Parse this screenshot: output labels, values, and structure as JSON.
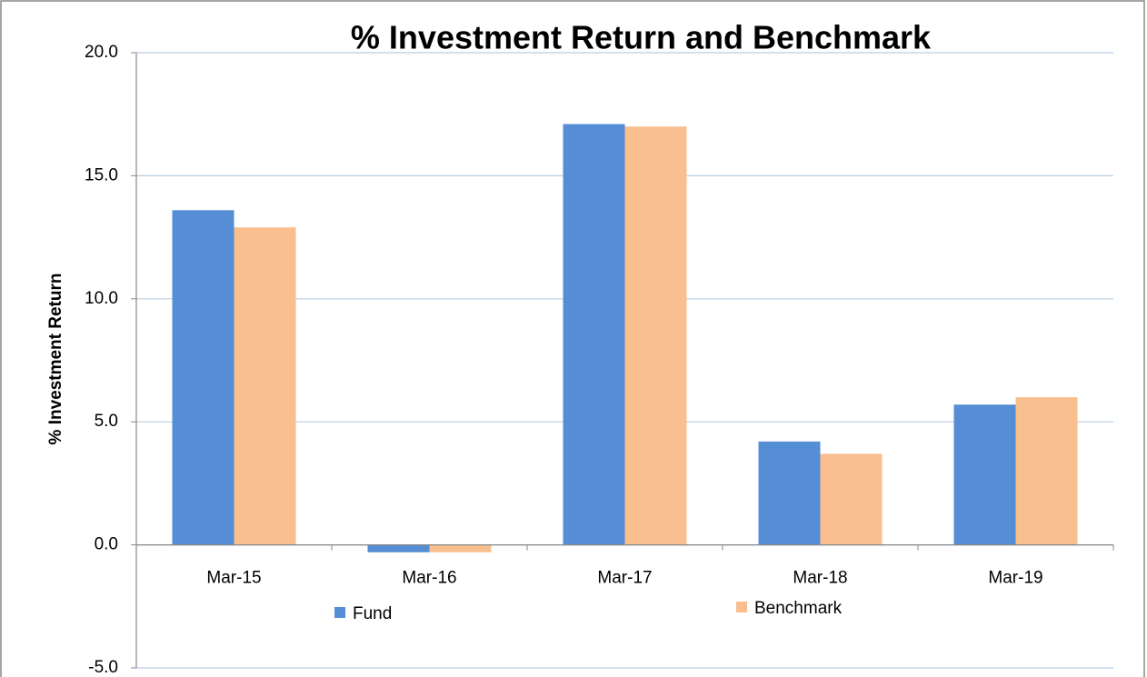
{
  "chart_data": {
    "type": "bar",
    "title": "% Investment Return and Benchmark",
    "y_label": "% Investment Return",
    "categories": [
      "Mar-15",
      "Mar-16",
      "Mar-17",
      "Mar-18",
      "Mar-19"
    ],
    "series": [
      {
        "name": "Fund",
        "color": "#558ed5",
        "values": [
          13.6,
          -0.3,
          17.1,
          4.2,
          5.7
        ]
      },
      {
        "name": "Benchmark",
        "color": "#f9bf8f",
        "values": [
          12.9,
          -0.3,
          17.0,
          3.7,
          6.0
        ]
      }
    ],
    "ylim": [
      -5,
      20
    ],
    "yticks": [
      {
        "value": -5,
        "label": "-5.0"
      },
      {
        "value": 0,
        "label": "0.0"
      },
      {
        "value": 5,
        "label": "5.0"
      },
      {
        "value": 10,
        "label": "10.0"
      },
      {
        "value": 15,
        "label": "15.0"
      },
      {
        "value": 20,
        "label": "20.0"
      }
    ],
    "grid": true,
    "legend": "bottom"
  }
}
